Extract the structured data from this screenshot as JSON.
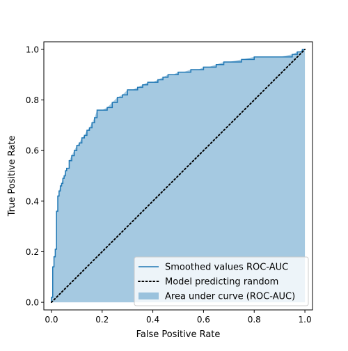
{
  "chart_data": {
    "type": "line",
    "title": "",
    "xlabel": "False Positive Rate",
    "ylabel": "True Positive Rate",
    "xlim": [
      -0.03,
      1.03
    ],
    "ylim": [
      -0.03,
      1.03
    ],
    "xticks": [
      0.0,
      0.2,
      0.4,
      0.6,
      0.8,
      1.0
    ],
    "yticks": [
      0.0,
      0.2,
      0.4,
      0.6,
      0.8,
      1.0
    ],
    "xtick_labels": [
      "0.0",
      "0.2",
      "0.4",
      "0.6",
      "0.8",
      "1.0"
    ],
    "ytick_labels": [
      "0.0",
      "0.2",
      "0.4",
      "0.6",
      "0.8",
      "1.0"
    ],
    "grid": false,
    "legend_position": "lower-right",
    "series": [
      {
        "name": "Smoothed values ROC-AUC",
        "kind": "line",
        "color": "#1f77b4",
        "x": [
          0.0,
          0.0,
          0.005,
          0.005,
          0.01,
          0.01,
          0.015,
          0.015,
          0.02,
          0.02,
          0.025,
          0.025,
          0.03,
          0.03,
          0.035,
          0.04,
          0.045,
          0.05,
          0.055,
          0.06,
          0.07,
          0.07,
          0.08,
          0.09,
          0.1,
          0.11,
          0.12,
          0.13,
          0.14,
          0.15,
          0.16,
          0.17,
          0.18,
          0.2,
          0.22,
          0.24,
          0.26,
          0.28,
          0.3,
          0.32,
          0.34,
          0.36,
          0.38,
          0.4,
          0.42,
          0.44,
          0.46,
          0.48,
          0.5,
          0.52,
          0.55,
          0.58,
          0.6,
          0.62,
          0.65,
          0.68,
          0.7,
          0.75,
          0.8,
          0.85,
          0.9,
          0.95,
          0.97,
          0.98,
          0.99,
          1.0
        ],
        "y": [
          0.0,
          0.02,
          0.02,
          0.14,
          0.15,
          0.18,
          0.19,
          0.21,
          0.22,
          0.36,
          0.37,
          0.42,
          0.43,
          0.44,
          0.46,
          0.47,
          0.49,
          0.5,
          0.52,
          0.53,
          0.53,
          0.56,
          0.58,
          0.6,
          0.62,
          0.63,
          0.65,
          0.66,
          0.68,
          0.69,
          0.71,
          0.73,
          0.76,
          0.76,
          0.77,
          0.79,
          0.81,
          0.82,
          0.84,
          0.84,
          0.85,
          0.86,
          0.87,
          0.87,
          0.88,
          0.89,
          0.9,
          0.9,
          0.91,
          0.91,
          0.92,
          0.92,
          0.93,
          0.93,
          0.94,
          0.95,
          0.95,
          0.96,
          0.97,
          0.97,
          0.97,
          0.98,
          0.99,
          0.99,
          1.0,
          1.0
        ]
      },
      {
        "name": "Model predicting random",
        "kind": "line",
        "style": "dotted",
        "color": "#000000",
        "x": [
          0.0,
          1.0
        ],
        "y": [
          0.0,
          1.0
        ]
      },
      {
        "name": "Area under curve (ROC-AUC)",
        "kind": "area",
        "color": "#1f77b4",
        "opacity": 0.4,
        "under_series": "Smoothed values ROC-AUC"
      }
    ]
  }
}
